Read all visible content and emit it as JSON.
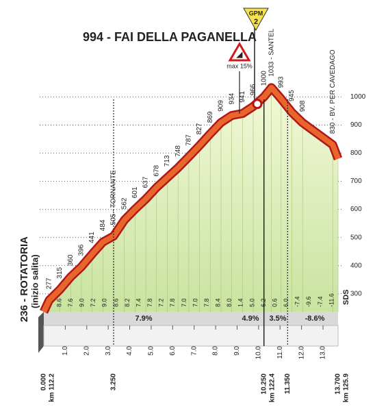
{
  "chart_data": {
    "type": "profile",
    "title": "994 - FAI DELLA PAGANELLA",
    "gpm": {
      "label": "GPM",
      "category": "2"
    },
    "warning": "max 15%",
    "start_note": "(inizio salita)",
    "logo": "SDS",
    "x": [
      0,
      0.25,
      0.75,
      1.25,
      1.75,
      2.25,
      2.75,
      3.25,
      3.75,
      4.25,
      4.75,
      5.25,
      5.75,
      6.25,
      6.75,
      7.25,
      7.75,
      8.25,
      8.75,
      9.25,
      9.75,
      10.25,
      10.6,
      11.05,
      11.55,
      12.05,
      13.45,
      13.7
    ],
    "values": [
      236,
      277,
      315,
      360,
      396,
      441,
      484,
      505,
      562,
      601,
      637,
      678,
      713,
      748,
      787,
      827,
      869,
      909,
      934,
      941,
      966,
      1000,
      1033,
      993,
      945,
      908,
      830,
      780
    ],
    "value_labels": [
      "236 - ROTATORIA",
      "277",
      "315",
      "360",
      "396",
      "441",
      "484",
      "505 - TORNANTE",
      "562",
      "601",
      "637",
      "678",
      "713",
      "748",
      "787",
      "827",
      "869",
      "909",
      "934",
      "941",
      "966",
      "1000",
      "1033 - SANTEL",
      "993",
      "945",
      "908",
      "830 - BV. PER CAVEDAGO",
      null
    ],
    "xlim": [
      0,
      13.7
    ],
    "ylim": [
      236,
      1040
    ],
    "yticks": [
      300,
      400,
      500,
      600,
      700,
      800,
      900,
      1000
    ],
    "xticks": [
      {
        "value": 1,
        "label": "1.0"
      },
      {
        "value": 2,
        "label": "2.0"
      },
      {
        "value": 3,
        "label": "3.0"
      },
      {
        "value": 4,
        "label": "4.0"
      },
      {
        "value": 5,
        "label": "5.0"
      },
      {
        "value": 6,
        "label": "6.0"
      },
      {
        "value": 7,
        "label": "7.0"
      },
      {
        "value": 8,
        "label": "8.0"
      },
      {
        "value": 9,
        "label": "9.0"
      },
      {
        "value": 10,
        "label": "10.0"
      },
      {
        "value": 11,
        "label": "11.0"
      },
      {
        "value": 12,
        "label": "12.0"
      },
      {
        "value": 13,
        "label": "13.0"
      }
    ],
    "markers": [
      {
        "value": 0,
        "label": "0.000",
        "km": "km 112.2"
      },
      {
        "value": 3.25,
        "label": "3.250"
      },
      {
        "value": 10.25,
        "label": "10.250",
        "km": "km 122.4"
      },
      {
        "value": 11.35,
        "label": "11.350"
      },
      {
        "value": 13.7,
        "label": "13.700",
        "km": "km 125.9"
      }
    ],
    "gradient_labels": [
      "8.6",
      "7.6",
      "9.0",
      "7.2",
      "9.0",
      "8.6",
      "8.2",
      "7.4",
      "7.8",
      "7.2",
      "7.8",
      "7.0",
      "7.0",
      "7.8",
      "8.4",
      "8.0",
      "1.4",
      "5.0",
      "6.2",
      "0.6",
      "6.0",
      "-7.4",
      "-9.6",
      "-7.4",
      "-11.6"
    ],
    "average_gradients": [
      "7.9%",
      "4.9%",
      "3.5%",
      "-8.6%"
    ],
    "color": "#e8662c"
  }
}
